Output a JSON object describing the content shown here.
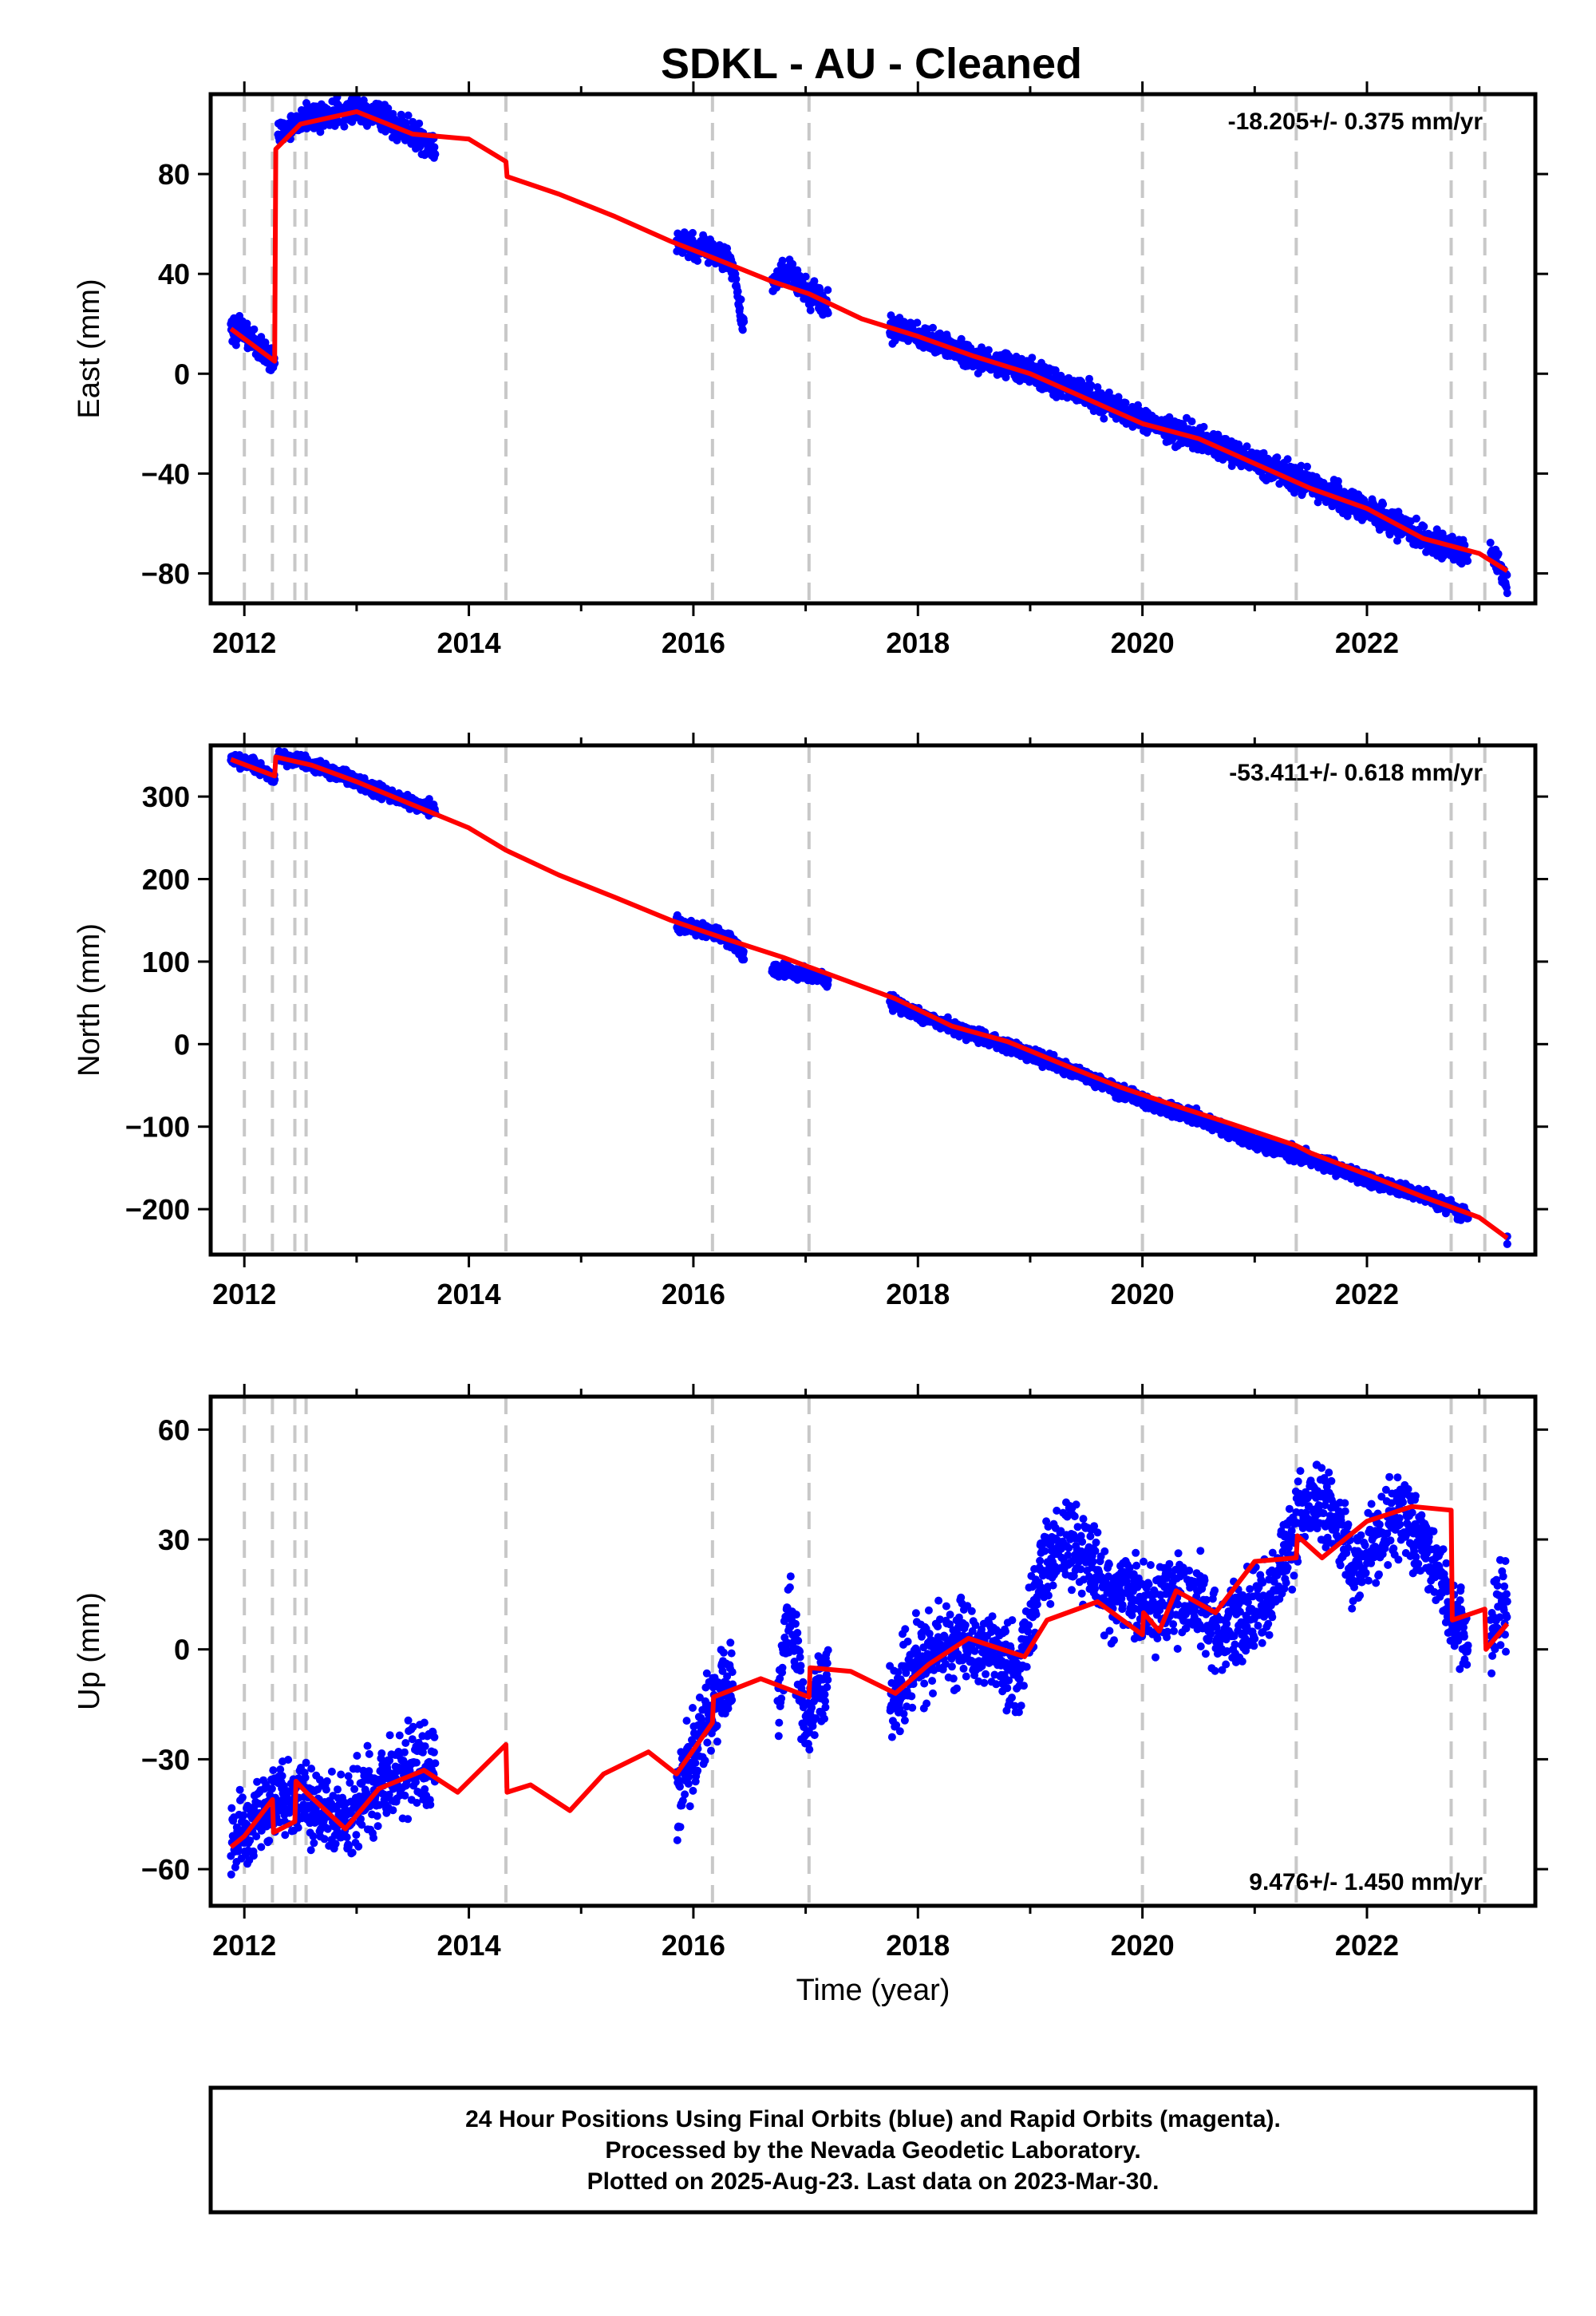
{
  "chart_data": [
    {
      "type": "scatter",
      "title": "SDKL  - AU - Cleaned",
      "ylabel": "East (mm)",
      "xlabel": "",
      "xlim": [
        2011.7,
        2023.5
      ],
      "ylim": [
        -92,
        112
      ],
      "xticks": [
        2012,
        2014,
        2016,
        2018,
        2020,
        2022
      ],
      "yticks": [
        -80,
        -40,
        0,
        40,
        80
      ],
      "rate_label": "-18.205+/- 0.375 mm/yr",
      "rate_position": "top-right",
      "event_lines": [
        2012.0,
        2012.25,
        2012.45,
        2012.55,
        2014.33,
        2016.17,
        2017.03,
        2020.0,
        2021.37,
        2022.75,
        2023.05
      ],
      "series": [
        {
          "style": "points",
          "color": "#0000ff",
          "segments": [
            {
              "x": [
                2011.88,
                2012.0,
                2012.1,
                2012.2,
                2012.27
              ],
              "y": [
                19,
                16,
                12,
                8,
                4
              ]
            },
            {
              "x": [
                2012.3,
                2012.5,
                2012.8,
                2013.0,
                2013.2,
                2013.5,
                2013.7
              ],
              "y": [
                96,
                102,
                104,
                106,
                104,
                96,
                91
              ]
            },
            {
              "x": [
                2015.85,
                2016.1,
                2016.35,
                2016.45
              ],
              "y": [
                53,
                50,
                44,
                18
              ]
            },
            {
              "x": [
                2016.7,
                2016.85,
                2017.0,
                2017.2
              ],
              "y": [
                36,
                42,
                33,
                28
              ]
            },
            {
              "x": [
                2017.75,
                2018.0,
                2018.5,
                2019.0,
                2019.5,
                2020.0,
                2020.5,
                2021.0,
                2021.5,
                2022.0,
                2022.5,
                2022.9
              ],
              "y": [
                18,
                16,
                6,
                1,
                -8,
                -19,
                -26,
                -35,
                -44,
                -54,
                -66,
                -73
              ]
            },
            {
              "x": [
                2023.1,
                2023.25
              ],
              "y": [
                -72,
                -84
              ]
            }
          ]
        },
        {
          "style": "line",
          "color": "#ff0000",
          "x": [
            2011.88,
            2012.27,
            2012.28,
            2012.5,
            2013.0,
            2013.5,
            2014.0,
            2014.33,
            2014.34,
            2014.8,
            2015.3,
            2015.8,
            2016.2,
            2016.7,
            2017.03,
            2017.5,
            2018.0,
            2018.5,
            2019.0,
            2019.5,
            2020.0,
            2020.5,
            2021.0,
            2021.5,
            2022.0,
            2022.5,
            2023.0,
            2023.25
          ],
          "y": [
            18,
            5,
            90,
            100,
            105,
            96,
            94,
            85,
            79,
            72,
            63,
            53,
            46,
            37,
            32,
            22,
            15,
            7,
            0,
            -10,
            -20,
            -26,
            -36,
            -46,
            -54,
            -66,
            -72,
            -79
          ]
        }
      ]
    },
    {
      "type": "scatter",
      "title": "",
      "ylabel": "North (mm)",
      "xlabel": "",
      "xlim": [
        2011.7,
        2023.5
      ],
      "ylim": [
        -255,
        362
      ],
      "xticks": [
        2012,
        2014,
        2016,
        2018,
        2020,
        2022
      ],
      "yticks": [
        -200,
        -100,
        0,
        100,
        200,
        300
      ],
      "rate_label": "-53.411+/- 0.618 mm/yr",
      "rate_position": "top-right",
      "event_lines": [
        2012.0,
        2012.25,
        2012.45,
        2012.55,
        2014.33,
        2016.17,
        2017.03,
        2020.0,
        2021.37,
        2022.75,
        2023.05
      ],
      "series": [
        {
          "style": "points",
          "color": "#0000ff",
          "segments": [
            {
              "x": [
                2011.88,
                2012.1,
                2012.27
              ],
              "y": [
                345,
                336,
                322
              ]
            },
            {
              "x": [
                2012.3,
                2012.6,
                2013.0,
                2013.3,
                2013.7
              ],
              "y": [
                348,
                340,
                318,
                300,
                284
              ]
            },
            {
              "x": [
                2015.85,
                2016.1,
                2016.35,
                2016.45
              ],
              "y": [
                146,
                137,
                126,
                106
              ]
            },
            {
              "x": [
                2016.7,
                2017.0,
                2017.2
              ],
              "y": [
                92,
                86,
                77
              ]
            },
            {
              "x": [
                2017.75,
                2018.0,
                2018.5,
                2019.0,
                2019.5,
                2020.0,
                2020.5,
                2021.0,
                2021.5,
                2022.0,
                2022.5,
                2022.9
              ],
              "y": [
                52,
                35,
                12,
                -12,
                -40,
                -68,
                -90,
                -120,
                -138,
                -165,
                -183,
                -208
              ]
            },
            {
              "x": [
                2023.25
              ],
              "y": [
                -240
              ]
            }
          ]
        },
        {
          "style": "line",
          "color": "#ff0000",
          "x": [
            2011.88,
            2012.27,
            2012.28,
            2012.6,
            2013.0,
            2013.5,
            2014.0,
            2014.33,
            2014.8,
            2015.3,
            2015.8,
            2016.3,
            2016.8,
            2017.3,
            2017.8,
            2018.3,
            2018.8,
            2019.3,
            2019.8,
            2020.3,
            2020.8,
            2021.37,
            2021.5,
            2022.0,
            2022.5,
            2023.0,
            2023.25
          ],
          "y": [
            345,
            325,
            348,
            338,
            318,
            290,
            262,
            235,
            205,
            178,
            150,
            127,
            105,
            80,
            55,
            22,
            3,
            -25,
            -52,
            -75,
            -97,
            -123,
            -132,
            -158,
            -185,
            -210,
            -235
          ]
        }
      ]
    },
    {
      "type": "scatter",
      "title": "",
      "ylabel": "Up (mm)",
      "xlabel": "Time (year)",
      "xlim": [
        2011.7,
        2023.5
      ],
      "ylim": [
        -70,
        69
      ],
      "xticks": [
        2012,
        2014,
        2016,
        2018,
        2020,
        2022
      ],
      "yticks": [
        -60,
        -30,
        0,
        30,
        60
      ],
      "rate_label": "9.476+/- 1.450 mm/yr",
      "rate_position": "bottom-right",
      "event_lines": [
        2012.0,
        2012.25,
        2012.45,
        2012.55,
        2014.33,
        2016.17,
        2017.03,
        2020.0,
        2021.37,
        2022.75,
        2023.05
      ],
      "series": [
        {
          "style": "points",
          "color": "#0000ff",
          "segments": [
            {
              "x": [
                2011.88,
                2012.1,
                2012.3,
                2012.5,
                2012.7,
                2012.9,
                2013.1,
                2013.3,
                2013.5,
                2013.7
              ],
              "y": [
                -52,
                -47,
                -41,
                -42,
                -44,
                -46,
                -40,
                -36,
                -32,
                -30
              ]
            },
            {
              "x": [
                2015.85,
                2016.0,
                2016.2,
                2016.35
              ],
              "y": [
                -38,
                -28,
                -14,
                -10
              ]
            },
            {
              "x": [
                2016.75,
                2016.85,
                2017.0,
                2017.2
              ],
              "y": [
                -14,
                10,
                -20,
                -5
              ]
            },
            {
              "x": [
                2017.75,
                2018.0,
                2018.3,
                2018.6,
                2018.9,
                2019.1,
                2019.3,
                2019.5,
                2019.7,
                2019.9,
                2020.1,
                2020.3,
                2020.5,
                2020.7,
                2020.9,
                2021.1,
                2021.3,
                2021.5,
                2021.7,
                2021.9,
                2022.1,
                2022.3,
                2022.5,
                2022.7,
                2022.9
              ],
              "y": [
                -14,
                -4,
                2,
                0,
                -6,
                22,
                30,
                25,
                14,
                16,
                9,
                15,
                12,
                5,
                8,
                14,
                27,
                42,
                35,
                22,
                29,
                38,
                30,
                15,
                2
              ]
            },
            {
              "x": [
                2023.1,
                2023.25
              ],
              "y": [
                5,
                12
              ]
            }
          ]
        },
        {
          "style": "line",
          "color": "#ff0000",
          "x": [
            2011.88,
            2012.0,
            2012.25,
            2012.26,
            2012.45,
            2012.46,
            2012.55,
            2012.9,
            2013.2,
            2013.6,
            2013.9,
            2014.33,
            2014.34,
            2014.55,
            2014.9,
            2015.2,
            2015.6,
            2015.85,
            2016.17,
            2016.18,
            2016.6,
            2017.03,
            2017.04,
            2017.4,
            2017.8,
            2018.1,
            2018.45,
            2018.95,
            2019.15,
            2019.6,
            2020.0,
            2020.01,
            2020.15,
            2020.3,
            2020.65,
            2021.0,
            2021.37,
            2021.38,
            2021.6,
            2022.0,
            2022.4,
            2022.75,
            2022.76,
            2023.05,
            2023.06,
            2023.25
          ],
          "y": [
            -54,
            -51,
            -41,
            -50,
            -47,
            -36,
            -39,
            -49,
            -38,
            -33,
            -39,
            -26,
            -39,
            -37,
            -44,
            -34,
            -28,
            -34,
            -20,
            -13,
            -8,
            -13,
            -5,
            -6,
            -12,
            -4,
            3,
            -2,
            8,
            13,
            4,
            10,
            5,
            16,
            10,
            24,
            25,
            31,
            25,
            35,
            39,
            38,
            8,
            11,
            0,
            7
          ]
        }
      ]
    }
  ],
  "footer": {
    "line1": "24 Hour Positions Using Final Orbits (blue) and Rapid Orbits (magenta).",
    "line2": "Processed by the Nevada Geodetic Laboratory.",
    "line3": "Plotted on 2025-Aug-23. Last data on 2023-Mar-30."
  }
}
